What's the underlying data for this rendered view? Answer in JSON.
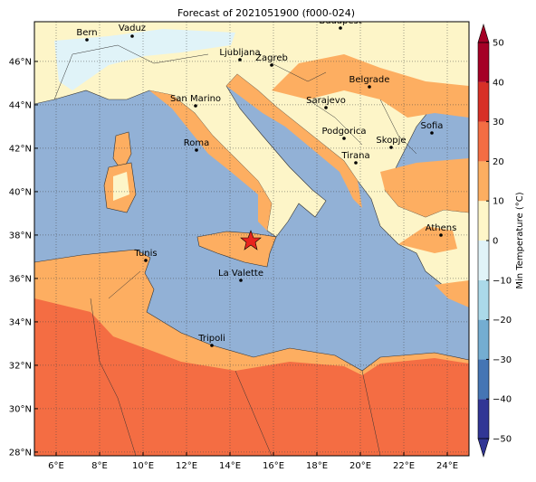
{
  "title": "Forecast of 2021051900 (f000-024)",
  "xticks": [
    {
      "value": 6,
      "label": "6°E"
    },
    {
      "value": 8,
      "label": "8°E"
    },
    {
      "value": 10,
      "label": "10°E"
    },
    {
      "value": 12,
      "label": "12°E"
    },
    {
      "value": 14,
      "label": "14°E"
    },
    {
      "value": 16,
      "label": "16°E"
    },
    {
      "value": 18,
      "label": "18°E"
    },
    {
      "value": 20,
      "label": "20°E"
    },
    {
      "value": 22,
      "label": "22°E"
    },
    {
      "value": 24,
      "label": "24°E"
    }
  ],
  "yticks": [
    {
      "value": 28,
      "label": "28°N"
    },
    {
      "value": 30,
      "label": "30°N"
    },
    {
      "value": 32,
      "label": "32°N"
    },
    {
      "value": 34,
      "label": "34°N"
    },
    {
      "value": 36,
      "label": "36°N"
    },
    {
      "value": 38,
      "label": "38°N"
    },
    {
      "value": 40,
      "label": "40°N"
    },
    {
      "value": 42,
      "label": "42°N"
    },
    {
      "value": 44,
      "label": "44°N"
    },
    {
      "value": 46,
      "label": "46°N"
    }
  ],
  "xlim": [
    5,
    25
  ],
  "ylim": [
    27.83,
    47.83
  ],
  "grid": true,
  "colorbar": {
    "label": "Min Temperature (°C)",
    "lim": [
      -50,
      50
    ],
    "ticks": [
      {
        "value": -50,
        "label": "−50"
      },
      {
        "value": -40,
        "label": "−40"
      },
      {
        "value": -30,
        "label": "−30"
      },
      {
        "value": -20,
        "label": "−20"
      },
      {
        "value": -10,
        "label": "−10"
      },
      0,
      10,
      20,
      30,
      40,
      50
    ],
    "colors": [
      "#313695",
      "#4575b4",
      "#74add1",
      "#abd9e9",
      "#e0f3f8",
      "#fef6c8",
      "#fdae61",
      "#f46d43",
      "#d73027",
      "#a50026"
    ]
  },
  "cities": [
    "Bern",
    "Vaduz",
    "Budapest",
    "Ljubljana",
    "Zagreb",
    "Belgrade",
    "Sarajevo",
    "San Marino",
    "Podgorica",
    "Sofia",
    "Skopje",
    "Roma",
    "Tirana",
    "Athens",
    "Tunis",
    "La Valette",
    "Tripoli"
  ]
}
